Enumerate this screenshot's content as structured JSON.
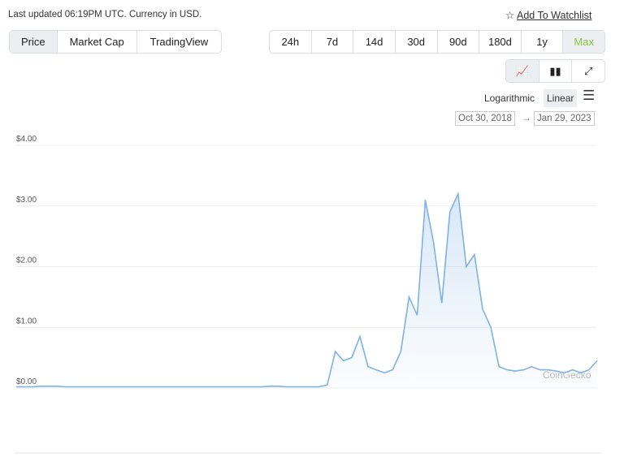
{
  "header": {
    "updated": "Last updated 06:19PM UTC. Currency in USD.",
    "watchlist": "Add To Watchlist"
  },
  "tabs": [
    "Price",
    "Market Cap",
    "TradingView"
  ],
  "ranges": [
    "24h",
    "7d",
    "14d",
    "30d",
    "90d",
    "180d",
    "1y",
    "Max"
  ],
  "scale_options": [
    "Logarithmic",
    "Linear"
  ],
  "date_range": [
    "Oct 30, 2018",
    "Jan 29, 2023"
  ],
  "chart_data": {
    "type": "line",
    "watermark": "CoinGecko",
    "ylim": [
      0,
      4
    ],
    "yticks": [
      {
        "value": 0,
        "label": "$0.00"
      },
      {
        "value": 1,
        "label": "$1.00"
      },
      {
        "value": 2,
        "label": "$2.00"
      },
      {
        "value": 3,
        "label": "$3.00"
      },
      {
        "value": 4,
        "label": "$4.00"
      }
    ],
    "grid": true,
    "series": [
      {
        "color": "#7fb2e5",
        "values": [
          0.02,
          0.02,
          0.02,
          0.03,
          0.03,
          0.03,
          0.02,
          0.02,
          0.02,
          0.02,
          0.02,
          0.02,
          0.02,
          0.02,
          0.02,
          0.02,
          0.02,
          0.02,
          0.02,
          0.02,
          0.02,
          0.02,
          0.02,
          0.02,
          0.02,
          0.02,
          0.02,
          0.02,
          0.02,
          0.02,
          0.02,
          0.03,
          0.03,
          0.02,
          0.02,
          0.02,
          0.02,
          0.02,
          0.05,
          0.6,
          0.45,
          0.5,
          0.85,
          0.35,
          0.3,
          0.25,
          0.3,
          0.6,
          1.5,
          1.2,
          3.1,
          2.4,
          1.4,
          2.9,
          3.2,
          2.0,
          2.2,
          1.3,
          1.0,
          0.35,
          0.3,
          0.28,
          0.3,
          0.35,
          0.3,
          0.3,
          0.28,
          0.25,
          0.3,
          0.25,
          0.3,
          0.45
        ]
      }
    ]
  }
}
